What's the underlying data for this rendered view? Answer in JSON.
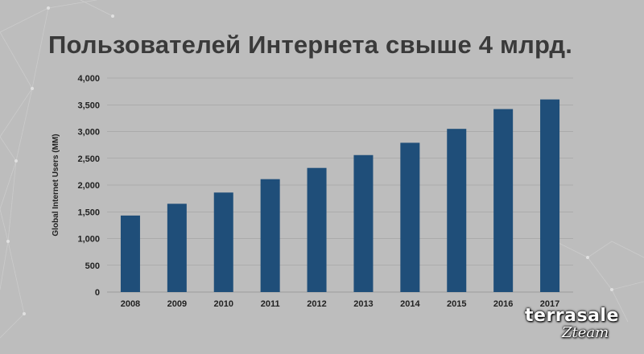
{
  "title": "Пользователей Интернета свыше 4 млрд.",
  "logo": {
    "main": "terrasale",
    "sub": "Zteam"
  },
  "colors": {
    "background": "#bdbdbd",
    "bar": "#1f4e79",
    "gridline": "#9a9a9a",
    "title": "#3a3a3a"
  },
  "chart_data": {
    "type": "bar",
    "categories": [
      "2008",
      "2009",
      "2010",
      "2011",
      "2012",
      "2013",
      "2014",
      "2015",
      "2016",
      "2017"
    ],
    "values": [
      1430,
      1650,
      1860,
      2110,
      2320,
      2560,
      2790,
      3050,
      3420,
      3600
    ],
    "ylabel": "Global Internet Users (MM)",
    "xlabel": "",
    "ylim": [
      0,
      4000
    ],
    "yticks": [
      "0",
      "500",
      "1,000",
      "1,500",
      "2,000",
      "2,500",
      "3,000",
      "3,500",
      "4,000"
    ],
    "grid": true,
    "legend": "none"
  }
}
